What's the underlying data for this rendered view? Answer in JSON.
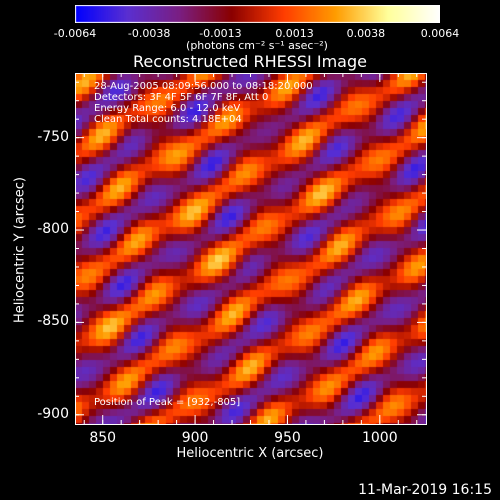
{
  "chart_data": {
    "type": "heatmap",
    "title": "Reconstructed RHESSI Image",
    "xlabel": "Heliocentric X (arcsec)",
    "ylabel": "Heliocentric Y (arcsec)",
    "xlim": [
      835,
      1025
    ],
    "ylim": [
      -905,
      -715
    ],
    "x_ticks": [
      "850",
      "900",
      "950",
      "1000"
    ],
    "y_ticks": [
      "-750",
      "-800",
      "-850",
      "-900"
    ],
    "x_tick_values": [
      850,
      900,
      950,
      1000
    ],
    "y_tick_values": [
      -750,
      -800,
      -850,
      -900
    ],
    "colorbar": {
      "min": -0.0064,
      "max": 0.0064,
      "ticks": [
        "-0.0064",
        "-0.0038",
        "-0.0013",
        "0.0013",
        "0.0038",
        "0.0064"
      ],
      "tick_values": [
        -0.0064,
        -0.0038,
        -0.0013,
        0.0013,
        0.0038,
        0.0064
      ],
      "units": "(photons cm⁻² s⁻¹ asec⁻²)",
      "colors": [
        "#0000ff",
        "#5a2fd1",
        "#7a1e82",
        "#8a0000",
        "#ff3c00",
        "#ff9c00",
        "#ffff9a",
        "#ffffff"
      ]
    },
    "annotations": [
      "28-Aug-2005 08:09:56.000 to 08:18:20.000",
      "Detectors: 3F 4F 5F 6F 7F 8F, Att 0",
      "Energy Range: 6.0 - 12.0 keV",
      "Clean     Total counts: 4.18E+04"
    ],
    "peak_label": "Position of Peak = [932,-805]",
    "peak_position": [
      932,
      -805
    ]
  },
  "datestamp": "11-Mar-2019 16:15"
}
